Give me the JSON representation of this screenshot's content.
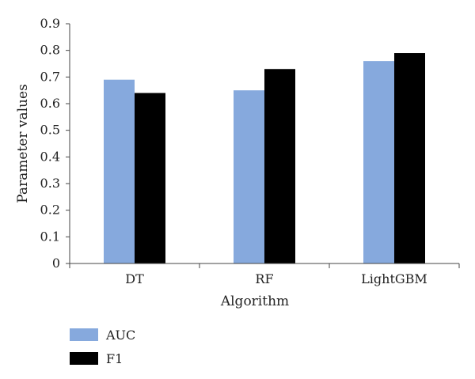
{
  "chart_data": {
    "type": "bar",
    "xlabel": "Algorithm",
    "ylabel": "Parameter values",
    "categories": [
      "DT",
      "RF",
      "LightGBM"
    ],
    "series": [
      {
        "name": "AUC",
        "values": [
          0.69,
          0.65,
          0.76
        ],
        "color": "#86A9DD"
      },
      {
        "name": "F1",
        "values": [
          0.64,
          0.73,
          0.79
        ],
        "color": "#000000"
      }
    ],
    "ylim": [
      0,
      0.9
    ],
    "yticks": [
      "0",
      "0.1",
      "0.2",
      "0.3",
      "0.4",
      "0.5",
      "0.6",
      "0.7",
      "0.8",
      "0.9"
    ],
    "grid": false,
    "legend_position": "bottom-left"
  }
}
